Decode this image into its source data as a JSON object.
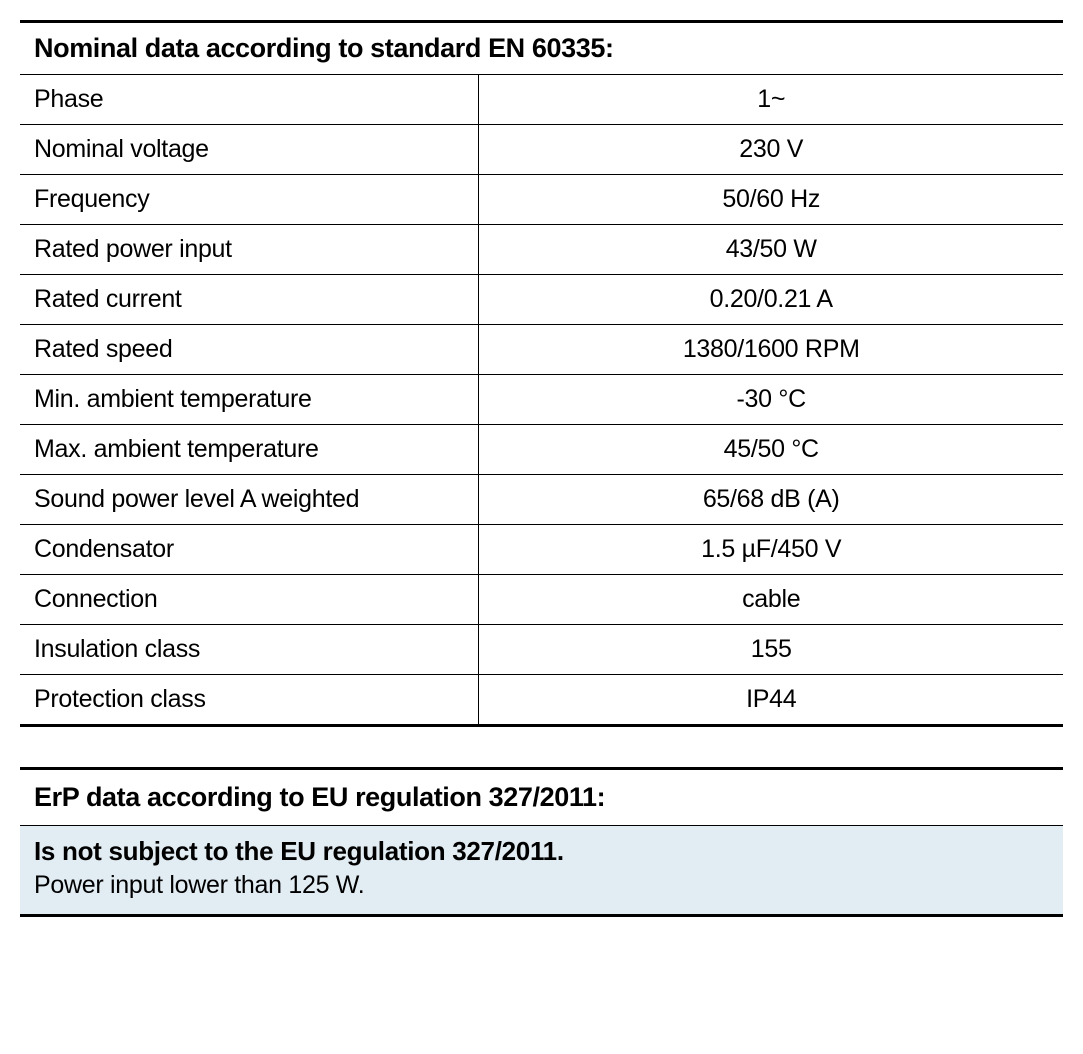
{
  "spec_table": {
    "header": "Nominal data according to standard EN 60335:",
    "rows": [
      {
        "label": "Phase",
        "value": "1~"
      },
      {
        "label": "Nominal voltage",
        "value": "230 V"
      },
      {
        "label": "Frequency",
        "value": "50/60 Hz"
      },
      {
        "label": "Rated power input",
        "value": "43/50 W"
      },
      {
        "label": "Rated current",
        "value": "0.20/0.21 A"
      },
      {
        "label": "Rated speed",
        "value": "1380/1600 RPM"
      },
      {
        "label": "Min. ambient temperature",
        "value": "-30 °C"
      },
      {
        "label": "Max. ambient temperature",
        "value": "45/50 °C"
      },
      {
        "label": "Sound power level A weighted",
        "value": "65/68 dB (A)"
      },
      {
        "label": "Condensator",
        "value": "1.5 µF/450 V"
      },
      {
        "label": "Connection",
        "value": "cable"
      },
      {
        "label": "Insulation class",
        "value": "155"
      },
      {
        "label": "Protection class",
        "value": "IP44"
      }
    ],
    "label_col_width_pct": 44,
    "header_fontsize": 27,
    "cell_fontsize": 25,
    "border_color": "#000000",
    "rule_thick": 3,
    "rule_thin": 1
  },
  "erp_table": {
    "header": "ErP data according to EU regulation 327/2011:",
    "box_title": "Is not subject to the EU regulation 327/2011.",
    "box_sub": "Power input lower than 125 W.",
    "box_bg": "#e2ecf3",
    "header_fontsize": 27,
    "text_fontsize": 25
  },
  "colors": {
    "text": "#000000",
    "background": "#ffffff"
  }
}
